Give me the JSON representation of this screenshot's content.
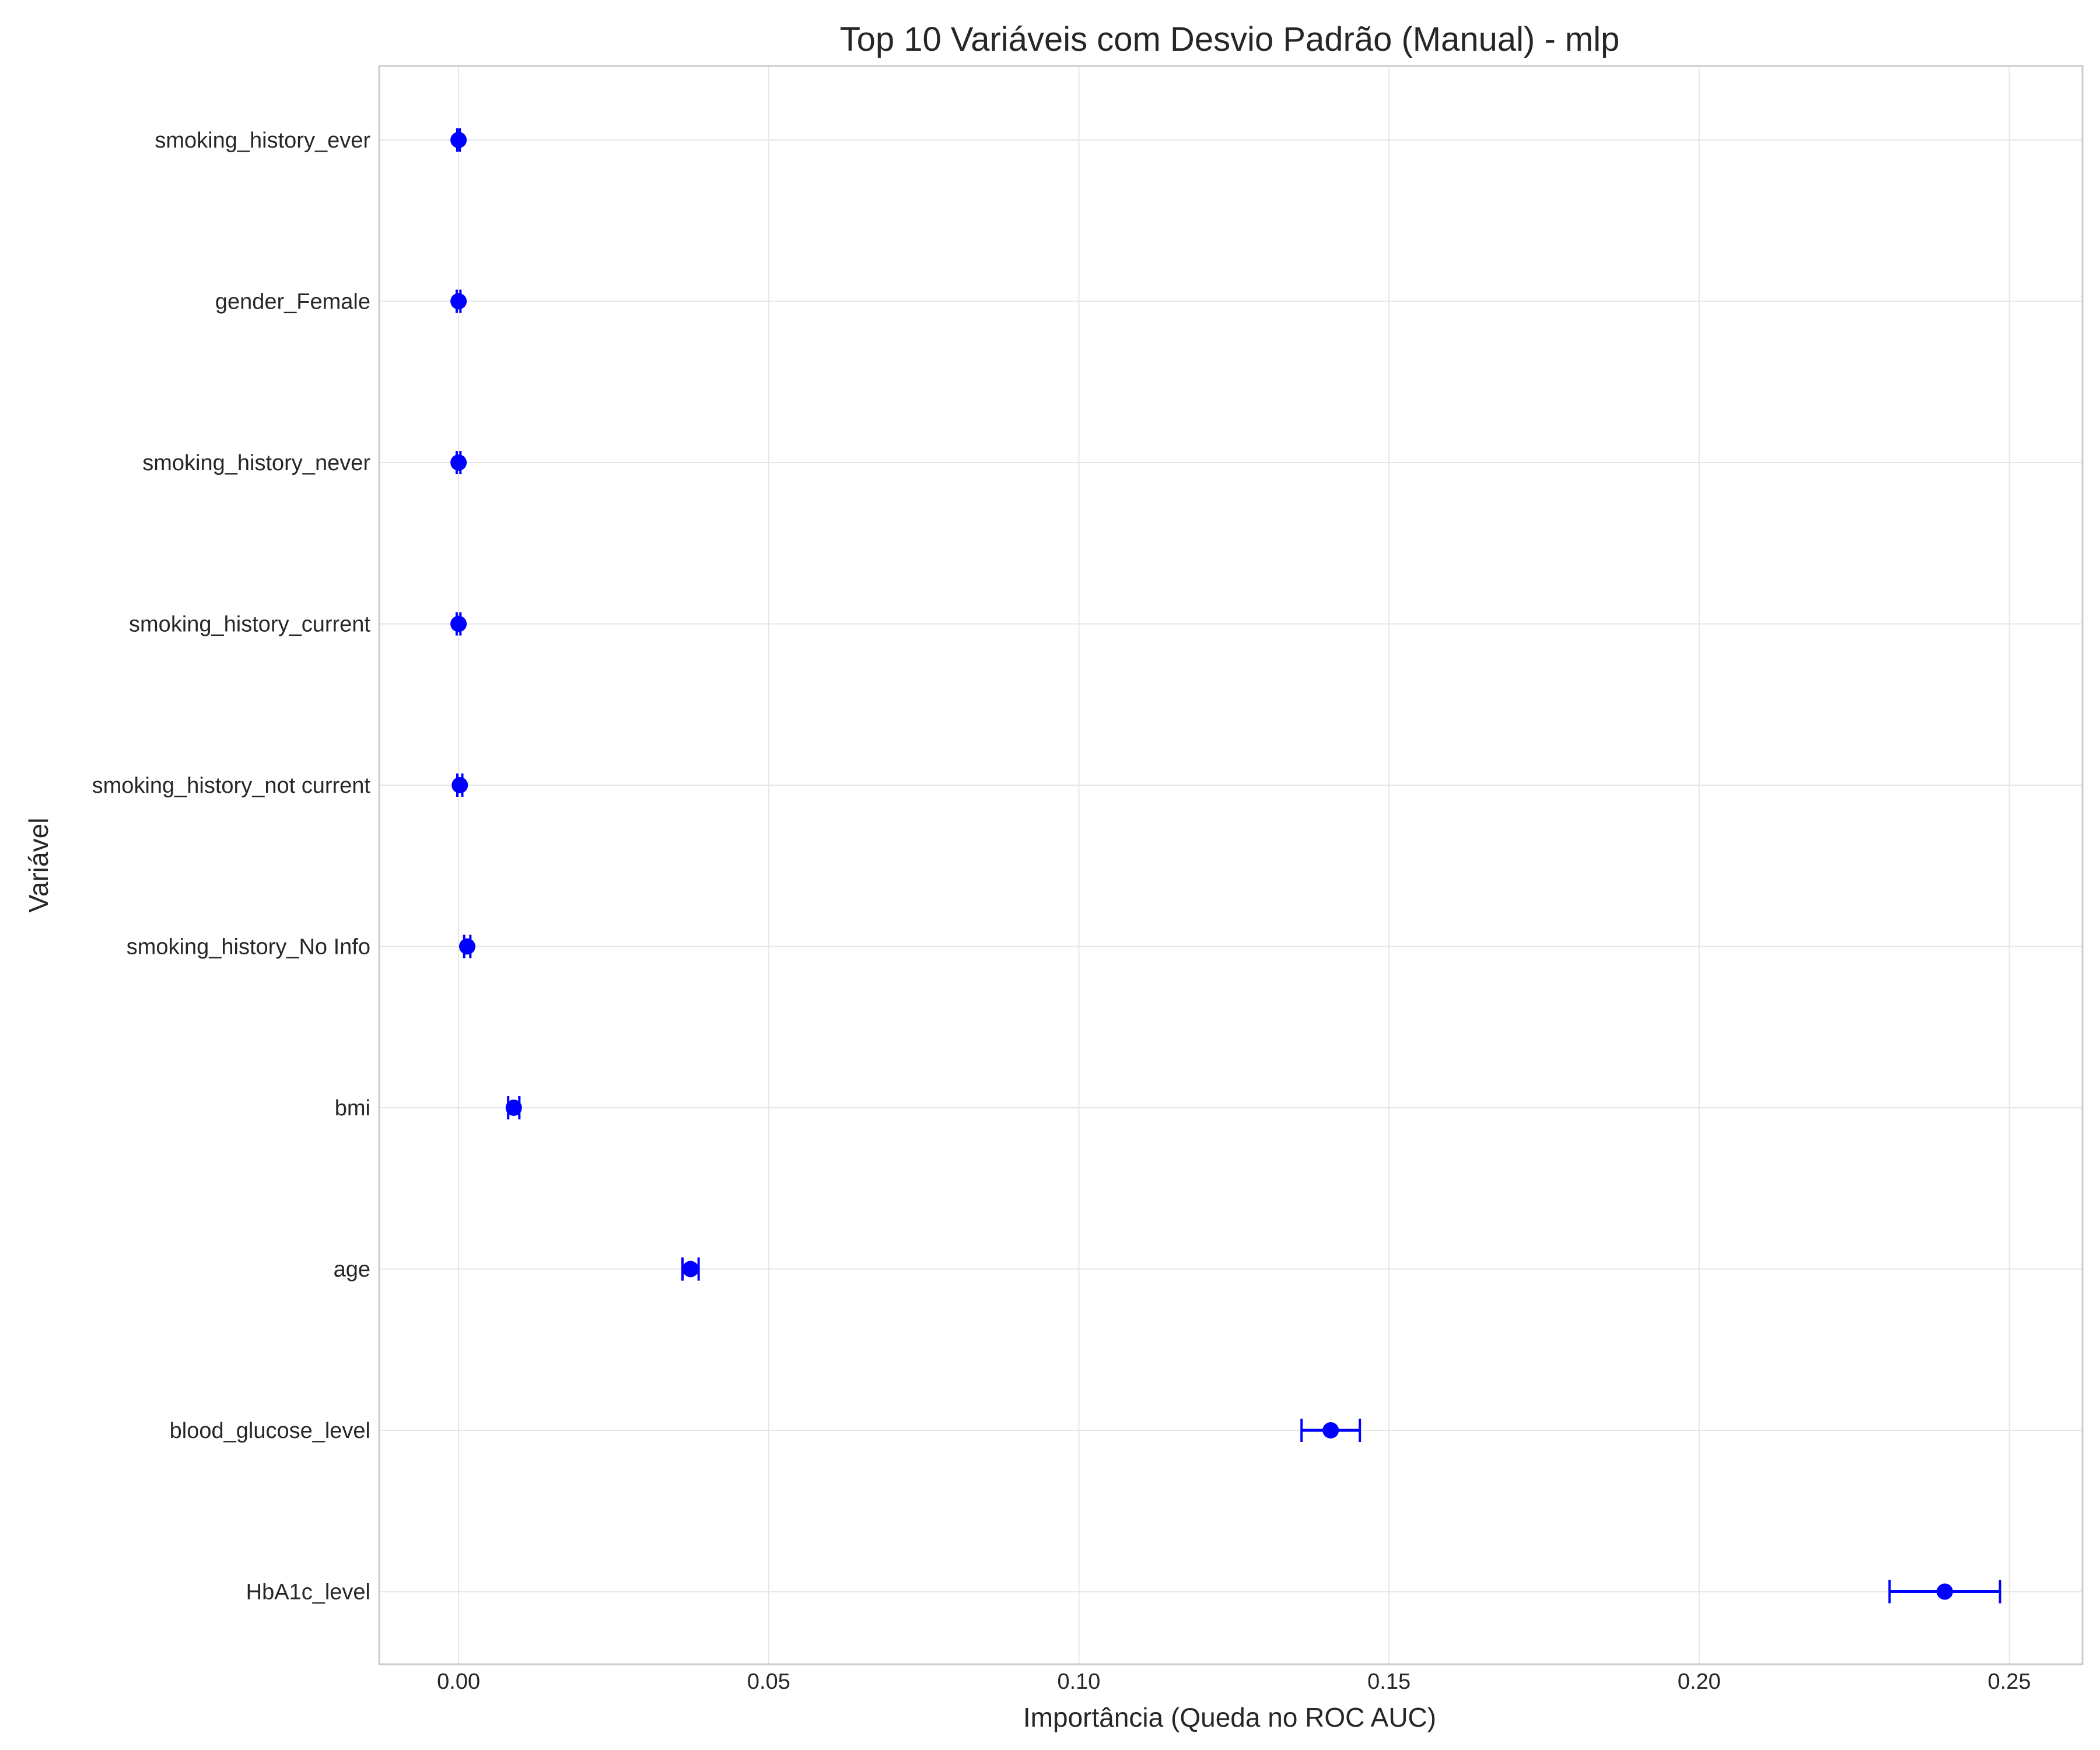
{
  "chart_data": {
    "type": "scatter",
    "subtype": "errorbar",
    "title": "Top 10 Variáveis com Desvio Padrão (Manual) - mlp",
    "xlabel": "Importância (Queda no ROC AUC)",
    "ylabel": "Variável",
    "xlim": [
      -0.0128,
      0.2618
    ],
    "xticks": [
      0.0,
      0.05,
      0.1,
      0.15,
      0.2,
      0.25
    ],
    "xtick_labels": [
      "0.00",
      "0.05",
      "0.10",
      "0.15",
      "0.20",
      "0.25"
    ],
    "grid": true,
    "color": "#0000ff",
    "categories": [
      "smoking_history_ever",
      "gender_Female",
      "smoking_history_never",
      "smoking_history_current",
      "smoking_history_not current",
      "smoking_history_No Info",
      "bmi",
      "age",
      "blood_glucose_level",
      "HbA1c_level"
    ],
    "values": [
      0.0,
      0.0,
      0.0,
      0.0,
      0.0002,
      0.0014,
      0.0089,
      0.0374,
      0.1406,
      0.2396
    ],
    "errors": [
      0.0002,
      0.0003,
      0.0003,
      0.0003,
      0.0004,
      0.0005,
      0.0009,
      0.0013,
      0.0047,
      0.0089
    ]
  }
}
